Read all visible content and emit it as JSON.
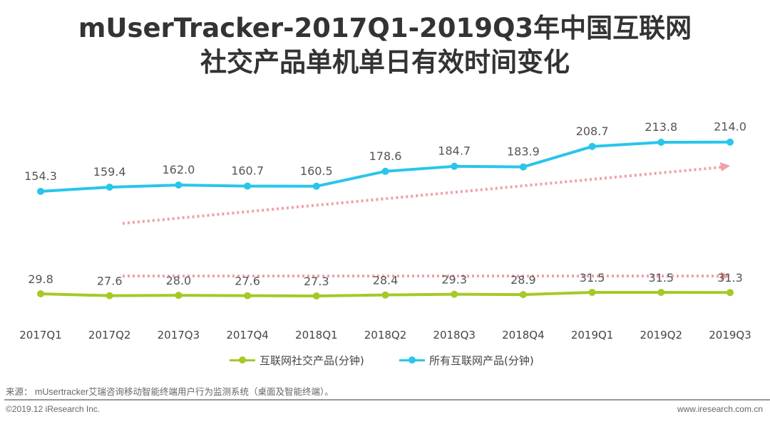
{
  "chart_data": {
    "type": "line",
    "title": "mUserTracker-2017Q1-2019Q3年中国互联网",
    "subtitle": "社交产品单机单日有效时间变化",
    "categories": [
      "2017Q1",
      "2017Q2",
      "2017Q3",
      "2017Q4",
      "2018Q1",
      "2018Q2",
      "2018Q3",
      "2018Q4",
      "2019Q1",
      "2019Q2",
      "2019Q3"
    ],
    "series": [
      {
        "name": "互联网社交产品(分钟)",
        "color": "#a5c927",
        "values": [
          29.8,
          27.6,
          28.0,
          27.6,
          27.3,
          28.4,
          29.3,
          28.9,
          31.5,
          31.5,
          31.3
        ]
      },
      {
        "name": "所有互联网产品(分钟)",
        "color": "#29c5ea",
        "values": [
          154.3,
          159.4,
          162.0,
          160.7,
          160.5,
          178.6,
          184.7,
          183.9,
          208.7,
          213.8,
          214.0
        ]
      }
    ],
    "trend_color": "#f0a0a8",
    "legend": "bottom"
  },
  "footer": {
    "source": "来源： mUsertracker艾瑞咨询移动智能终端用户行为监测系统（桌面及智能终端）。",
    "copyright": "©2019.12 iResearch Inc.",
    "website": "www.iresearch.com.cn"
  }
}
